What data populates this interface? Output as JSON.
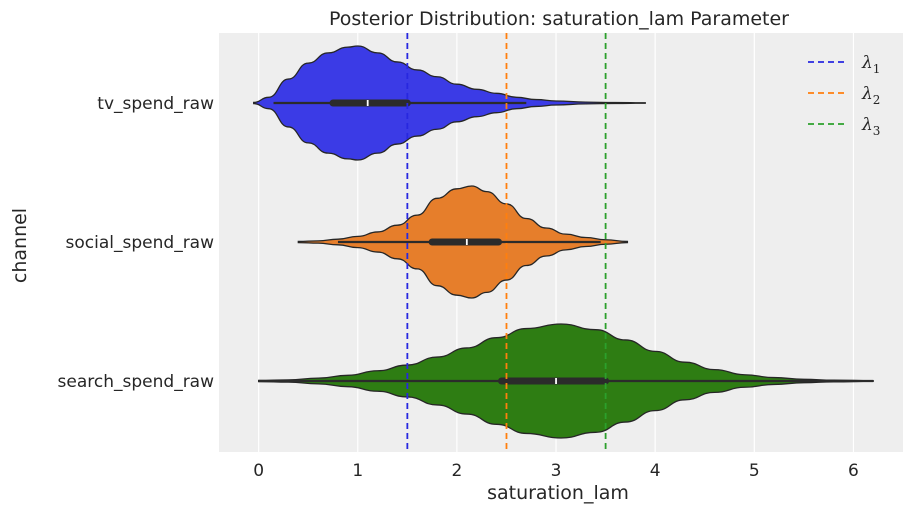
{
  "chart_data": {
    "type": "violin",
    "title": "Posterior Distribution: saturation_lam Parameter",
    "xlabel": "saturation_lam",
    "ylabel": "channel",
    "xlim": [
      -0.4,
      6.5
    ],
    "xticks": [
      0,
      1,
      2,
      3,
      4,
      5,
      6
    ],
    "grid": true,
    "legend_position": "top-right",
    "categories": [
      "tv_spend_raw",
      "social_spend_raw",
      "search_spend_raw"
    ],
    "series": [
      {
        "category": "tv_spend_raw",
        "color": "#3b3be6",
        "min": -0.05,
        "max": 3.9,
        "whisker": [
          0.15,
          2.7
        ],
        "q1": 0.75,
        "median": 1.1,
        "q3": 1.5,
        "density": [
          [
            -0.05,
            0.01
          ],
          [
            0.1,
            0.1
          ],
          [
            0.3,
            0.42
          ],
          [
            0.5,
            0.7
          ],
          [
            0.7,
            0.88
          ],
          [
            0.9,
            0.98
          ],
          [
            1.0,
            1.0
          ],
          [
            1.2,
            0.88
          ],
          [
            1.4,
            0.72
          ],
          [
            1.6,
            0.58
          ],
          [
            1.8,
            0.46
          ],
          [
            2.0,
            0.33
          ],
          [
            2.2,
            0.24
          ],
          [
            2.4,
            0.17
          ],
          [
            2.6,
            0.1
          ],
          [
            2.8,
            0.06
          ],
          [
            3.0,
            0.035
          ],
          [
            3.3,
            0.015
          ],
          [
            3.6,
            0.008
          ],
          [
            3.9,
            0.004
          ]
        ]
      },
      {
        "category": "social_spend_raw",
        "color": "#e67e2b",
        "min": 0.4,
        "max": 3.72,
        "whisker": [
          0.8,
          3.45
        ],
        "q1": 1.75,
        "median": 2.1,
        "q3": 2.42,
        "density": [
          [
            0.4,
            0.01
          ],
          [
            0.6,
            0.02
          ],
          [
            0.8,
            0.05
          ],
          [
            1.0,
            0.1
          ],
          [
            1.2,
            0.18
          ],
          [
            1.4,
            0.3
          ],
          [
            1.6,
            0.48
          ],
          [
            1.8,
            0.78
          ],
          [
            2.0,
            0.95
          ],
          [
            2.15,
            1.0
          ],
          [
            2.3,
            0.9
          ],
          [
            2.5,
            0.68
          ],
          [
            2.7,
            0.42
          ],
          [
            2.9,
            0.25
          ],
          [
            3.1,
            0.14
          ],
          [
            3.3,
            0.08
          ],
          [
            3.5,
            0.04
          ],
          [
            3.72,
            0.01
          ]
        ]
      },
      {
        "category": "search_spend_raw",
        "color": "#2e7d13",
        "min": 0.0,
        "max": 6.2,
        "whisker": [
          0.0,
          6.2
        ],
        "q1": 2.45,
        "median": 3.0,
        "q3": 3.5,
        "density": [
          [
            0.0,
            0.01
          ],
          [
            0.3,
            0.02
          ],
          [
            0.6,
            0.05
          ],
          [
            0.9,
            0.1
          ],
          [
            1.2,
            0.18
          ],
          [
            1.5,
            0.28
          ],
          [
            1.8,
            0.42
          ],
          [
            2.1,
            0.58
          ],
          [
            2.4,
            0.76
          ],
          [
            2.7,
            0.92
          ],
          [
            3.05,
            1.0
          ],
          [
            3.4,
            0.9
          ],
          [
            3.7,
            0.72
          ],
          [
            4.0,
            0.52
          ],
          [
            4.3,
            0.33
          ],
          [
            4.6,
            0.2
          ],
          [
            4.9,
            0.11
          ],
          [
            5.2,
            0.06
          ],
          [
            5.5,
            0.03
          ],
          [
            5.8,
            0.015
          ],
          [
            6.2,
            0.005
          ]
        ]
      }
    ],
    "reference_lines": [
      {
        "name": "λ1",
        "symbol": "λ",
        "subscript": "1",
        "x": 1.5,
        "color": "#2727e0"
      },
      {
        "name": "λ2",
        "symbol": "λ",
        "subscript": "2",
        "x": 2.5,
        "color": "#ff7f0e"
      },
      {
        "name": "λ3",
        "symbol": "λ",
        "subscript": "3",
        "x": 3.5,
        "color": "#2ca02c"
      }
    ]
  }
}
